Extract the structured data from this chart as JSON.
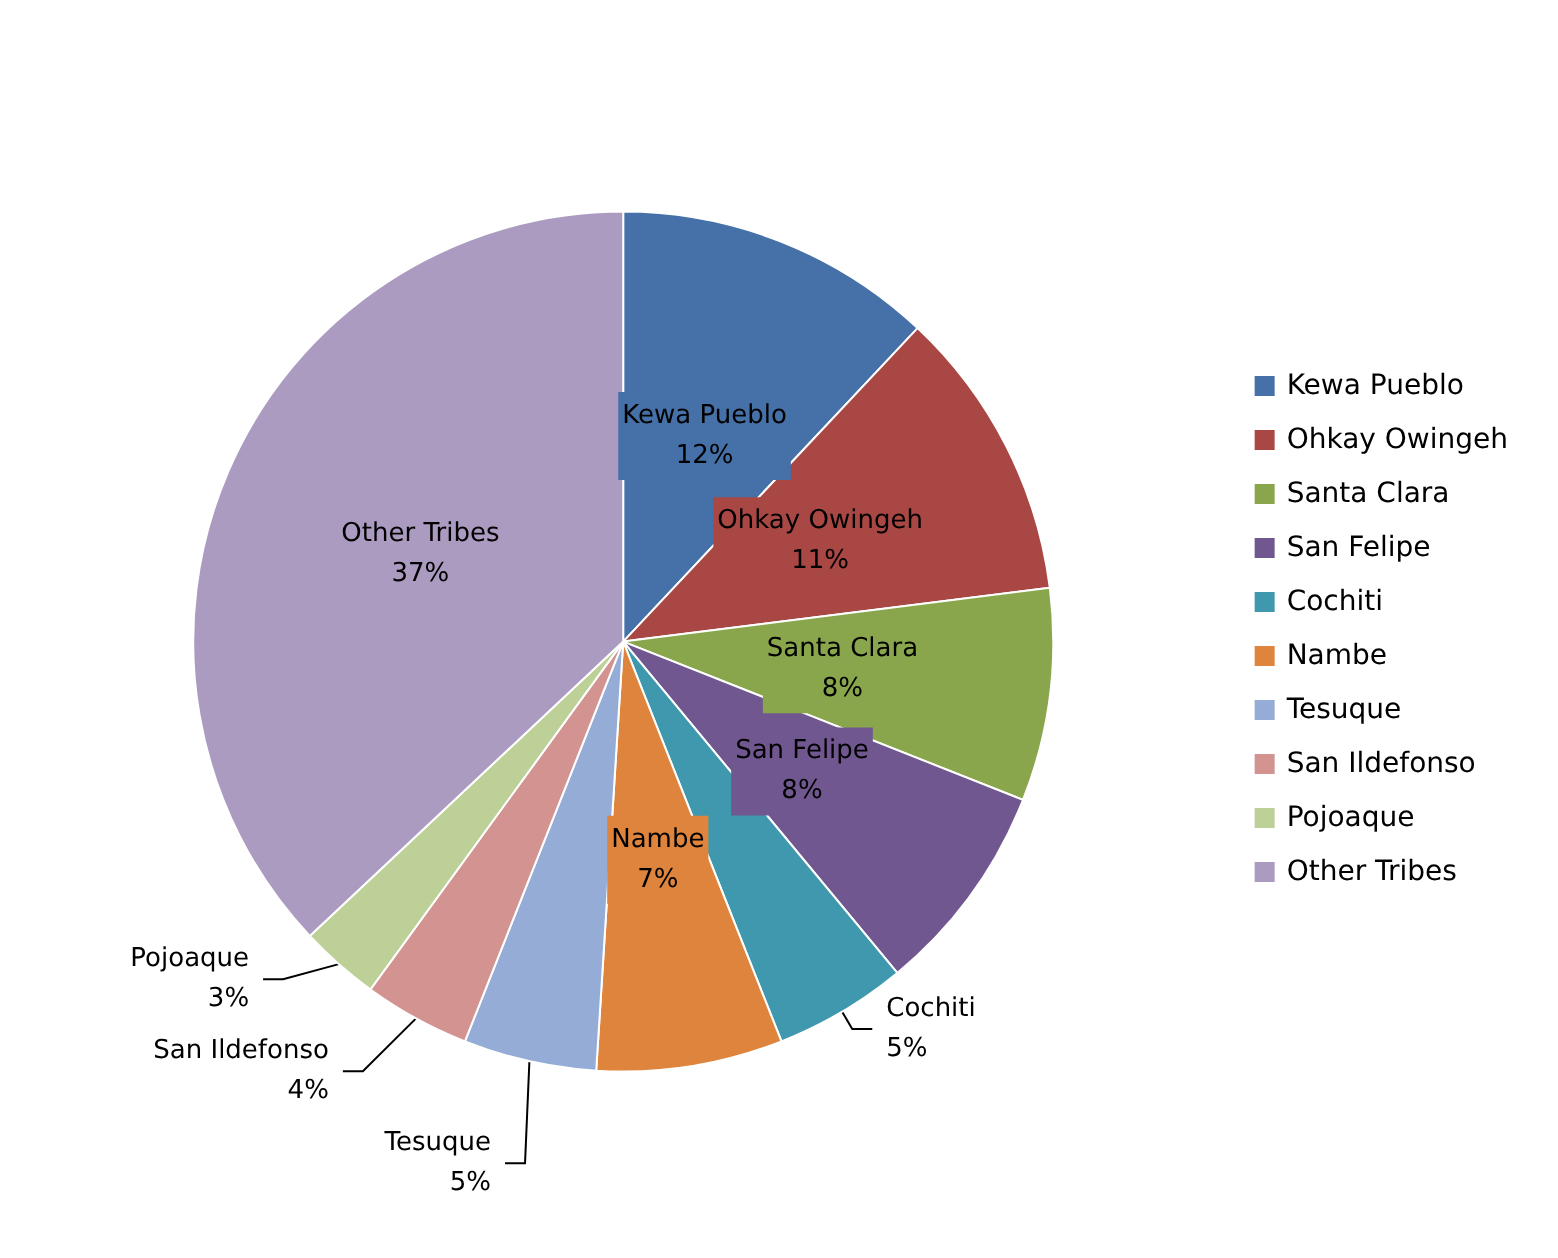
{
  "chart_data": {
    "type": "pie",
    "categories": [
      "Kewa Pueblo",
      "Ohkay Owingeh",
      "Santa Clara",
      "San Felipe",
      "Cochiti",
      "Nambe",
      "Tesuque",
      "San Ildefonso",
      "Pojoaque",
      "Other Tribes"
    ],
    "values": [
      12,
      11,
      8,
      8,
      5,
      7,
      5,
      4,
      3,
      37
    ],
    "value_labels": [
      "12%",
      "11%",
      "8%",
      "8%",
      "5%",
      "7%",
      "5%",
      "4%",
      "3%",
      "37%"
    ],
    "colors": [
      "#4570a8",
      "#a94744",
      "#8aa64c",
      "#71578f",
      "#3f98ad",
      "#df843c",
      "#94acd6",
      "#d39390",
      "#bcd097",
      "#ab9bc0"
    ],
    "legend": "right"
  }
}
